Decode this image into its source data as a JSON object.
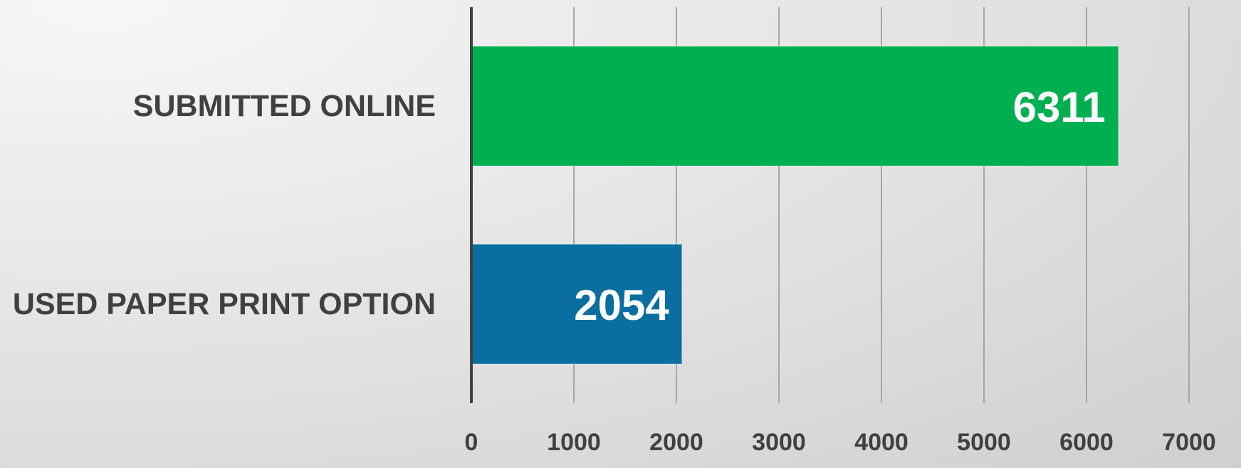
{
  "chart_data": {
    "type": "bar",
    "orientation": "horizontal",
    "title": "",
    "xlabel": "",
    "ylabel": "",
    "categories": [
      "SUBMITTED ONLINE",
      "USED PAPER PRINT OPTION"
    ],
    "values": [
      6311,
      2054
    ],
    "colors": [
      "#00b050",
      "#0a6ea0"
    ],
    "xlim": [
      0,
      7000
    ],
    "xticks": [
      0,
      1000,
      2000,
      3000,
      4000,
      5000,
      6000,
      7000
    ],
    "xtick_labels": [
      "0",
      "1000",
      "2000",
      "3000",
      "4000",
      "5000",
      "6000",
      "7000"
    ],
    "data_labels": [
      "6311",
      "2054"
    ],
    "grid": "vertical",
    "legend": "none"
  },
  "colors": {
    "text": "#404040",
    "data_label": "#ffffff",
    "gridline": "#a6a6a6",
    "axis": "#404040"
  }
}
